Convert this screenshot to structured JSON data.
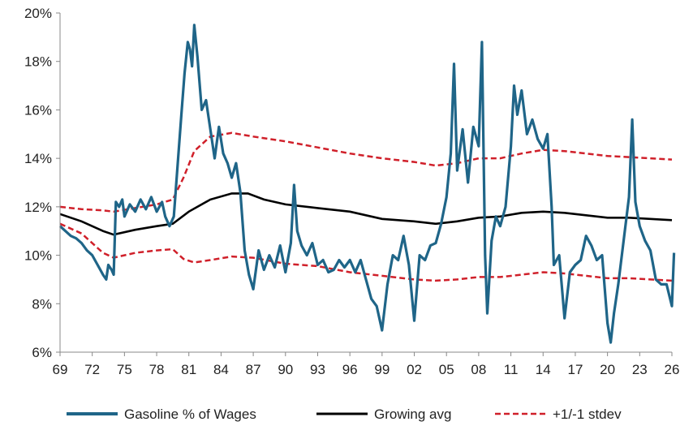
{
  "colors": {
    "gasoline": "#1f6588",
    "avg": "#000000",
    "stdev": "#d0202a",
    "axis": "#888888"
  },
  "chart_data": {
    "type": "line",
    "title": "",
    "xlabel": "",
    "ylabel": "",
    "ylim": [
      6,
      20
    ],
    "xlim": [
      1969,
      2026
    ],
    "grid": false,
    "legend": "bottom",
    "x_tick_labels": [
      "69",
      "72",
      "75",
      "78",
      "81",
      "84",
      "87",
      "90",
      "93",
      "96",
      "99",
      "02",
      "05",
      "08",
      "11",
      "14",
      "17",
      "20",
      "23",
      "26"
    ],
    "x_tick_years": [
      1969,
      1972,
      1975,
      1978,
      1981,
      1984,
      1987,
      1990,
      1993,
      1996,
      1999,
      2002,
      2005,
      2008,
      2011,
      2014,
      2017,
      2020,
      2023,
      2026
    ],
    "y_ticks": [
      6,
      8,
      10,
      12,
      14,
      16,
      18,
      20
    ],
    "y_tick_labels": [
      "6%",
      "8%",
      "10%",
      "12%",
      "14%",
      "16%",
      "18%",
      "20%"
    ],
    "series": [
      {
        "name": "Gasoline % of Wages",
        "style": "solid-thick",
        "points": [
          [
            1969.0,
            11.2
          ],
          [
            1969.5,
            11.0
          ],
          [
            1970.0,
            10.8
          ],
          [
            1970.5,
            10.7
          ],
          [
            1971.0,
            10.5
          ],
          [
            1971.5,
            10.2
          ],
          [
            1972.0,
            10.0
          ],
          [
            1972.5,
            9.6
          ],
          [
            1973.0,
            9.2
          ],
          [
            1973.3,
            9.0
          ],
          [
            1973.5,
            9.6
          ],
          [
            1973.8,
            9.4
          ],
          [
            1974.0,
            9.2
          ],
          [
            1974.2,
            12.2
          ],
          [
            1974.5,
            12.0
          ],
          [
            1974.8,
            12.3
          ],
          [
            1975.0,
            11.6
          ],
          [
            1975.5,
            12.1
          ],
          [
            1976.0,
            11.8
          ],
          [
            1976.5,
            12.3
          ],
          [
            1977.0,
            11.9
          ],
          [
            1977.5,
            12.4
          ],
          [
            1978.0,
            11.8
          ],
          [
            1978.5,
            12.2
          ],
          [
            1978.8,
            11.6
          ],
          [
            1979.2,
            11.2
          ],
          [
            1979.6,
            11.6
          ],
          [
            1980.0,
            14.0
          ],
          [
            1980.3,
            15.8
          ],
          [
            1980.6,
            17.5
          ],
          [
            1980.9,
            18.8
          ],
          [
            1981.1,
            18.5
          ],
          [
            1981.3,
            17.8
          ],
          [
            1981.5,
            19.5
          ],
          [
            1981.8,
            18.2
          ],
          [
            1982.2,
            16.0
          ],
          [
            1982.6,
            16.4
          ],
          [
            1983.0,
            15.2
          ],
          [
            1983.4,
            14.0
          ],
          [
            1983.8,
            15.3
          ],
          [
            1984.2,
            14.2
          ],
          [
            1984.6,
            13.8
          ],
          [
            1985.0,
            13.2
          ],
          [
            1985.4,
            13.8
          ],
          [
            1985.8,
            12.6
          ],
          [
            1986.2,
            10.2
          ],
          [
            1986.6,
            9.2
          ],
          [
            1987.0,
            8.6
          ],
          [
            1987.5,
            10.2
          ],
          [
            1988.0,
            9.4
          ],
          [
            1988.5,
            10.0
          ],
          [
            1989.0,
            9.5
          ],
          [
            1989.5,
            10.4
          ],
          [
            1990.0,
            9.3
          ],
          [
            1990.5,
            10.5
          ],
          [
            1990.8,
            12.9
          ],
          [
            1991.1,
            11.0
          ],
          [
            1991.5,
            10.4
          ],
          [
            1992.0,
            10.0
          ],
          [
            1992.5,
            10.5
          ],
          [
            1993.0,
            9.6
          ],
          [
            1993.5,
            9.8
          ],
          [
            1994.0,
            9.3
          ],
          [
            1994.5,
            9.4
          ],
          [
            1995.0,
            9.8
          ],
          [
            1995.5,
            9.5
          ],
          [
            1996.0,
            9.8
          ],
          [
            1996.5,
            9.3
          ],
          [
            1997.0,
            9.8
          ],
          [
            1997.5,
            9.0
          ],
          [
            1998.0,
            8.2
          ],
          [
            1998.5,
            7.9
          ],
          [
            1999.0,
            6.9
          ],
          [
            1999.5,
            8.8
          ],
          [
            2000.0,
            10.0
          ],
          [
            2000.5,
            9.8
          ],
          [
            2001.0,
            10.8
          ],
          [
            2001.5,
            9.6
          ],
          [
            2002.0,
            7.3
          ],
          [
            2002.5,
            10.0
          ],
          [
            2003.0,
            9.8
          ],
          [
            2003.5,
            10.4
          ],
          [
            2004.0,
            10.5
          ],
          [
            2004.5,
            11.3
          ],
          [
            2005.0,
            12.4
          ],
          [
            2005.4,
            14.2
          ],
          [
            2005.7,
            17.9
          ],
          [
            2006.0,
            13.5
          ],
          [
            2006.5,
            15.2
          ],
          [
            2007.0,
            13.0
          ],
          [
            2007.5,
            15.3
          ],
          [
            2008.0,
            14.5
          ],
          [
            2008.3,
            18.8
          ],
          [
            2008.6,
            10.0
          ],
          [
            2008.8,
            7.6
          ],
          [
            2009.2,
            10.6
          ],
          [
            2009.6,
            11.6
          ],
          [
            2010.0,
            11.2
          ],
          [
            2010.5,
            12.0
          ],
          [
            2011.0,
            14.5
          ],
          [
            2011.3,
            17.0
          ],
          [
            2011.6,
            15.8
          ],
          [
            2012.0,
            16.8
          ],
          [
            2012.5,
            15.0
          ],
          [
            2013.0,
            15.6
          ],
          [
            2013.5,
            14.8
          ],
          [
            2014.0,
            14.4
          ],
          [
            2014.4,
            15.0
          ],
          [
            2014.8,
            12.0
          ],
          [
            2015.0,
            9.6
          ],
          [
            2015.5,
            10.0
          ],
          [
            2016.0,
            7.4
          ],
          [
            2016.5,
            9.3
          ],
          [
            2017.0,
            9.6
          ],
          [
            2017.5,
            9.8
          ],
          [
            2018.0,
            10.8
          ],
          [
            2018.5,
            10.4
          ],
          [
            2019.0,
            9.8
          ],
          [
            2019.5,
            10.0
          ],
          [
            2020.0,
            7.2
          ],
          [
            2020.3,
            6.4
          ],
          [
            2020.6,
            7.6
          ],
          [
            2021.0,
            8.8
          ],
          [
            2021.5,
            10.6
          ],
          [
            2022.0,
            12.4
          ],
          [
            2022.3,
            15.6
          ],
          [
            2022.6,
            12.2
          ],
          [
            2023.0,
            11.2
          ],
          [
            2023.5,
            10.6
          ],
          [
            2024.0,
            10.2
          ],
          [
            2024.5,
            9.0
          ],
          [
            2025.0,
            8.8
          ],
          [
            2025.5,
            8.8
          ],
          [
            2026.0,
            7.9
          ],
          [
            2026.2,
            10.1
          ]
        ]
      },
      {
        "name": "Growing avg",
        "style": "solid",
        "points": [
          [
            1969.0,
            11.7
          ],
          [
            1971.0,
            11.4
          ],
          [
            1973.0,
            11.0
          ],
          [
            1974.0,
            10.85
          ],
          [
            1976.0,
            11.05
          ],
          [
            1978.0,
            11.2
          ],
          [
            1979.5,
            11.3
          ],
          [
            1981.0,
            11.8
          ],
          [
            1983.0,
            12.3
          ],
          [
            1985.0,
            12.55
          ],
          [
            1986.5,
            12.55
          ],
          [
            1988.0,
            12.3
          ],
          [
            1990.0,
            12.1
          ],
          [
            1993.0,
            11.95
          ],
          [
            1996.0,
            11.8
          ],
          [
            1999.0,
            11.5
          ],
          [
            2002.0,
            11.4
          ],
          [
            2004.0,
            11.3
          ],
          [
            2006.0,
            11.4
          ],
          [
            2008.0,
            11.55
          ],
          [
            2010.0,
            11.6
          ],
          [
            2012.0,
            11.75
          ],
          [
            2014.0,
            11.8
          ],
          [
            2016.0,
            11.75
          ],
          [
            2018.0,
            11.65
          ],
          [
            2020.0,
            11.55
          ],
          [
            2022.0,
            11.55
          ],
          [
            2024.0,
            11.5
          ],
          [
            2026.0,
            11.45
          ]
        ]
      },
      {
        "name": "+1/-1 stdev",
        "style": "dashed",
        "segments": [
          [
            [
              1969.0,
              12.0
            ],
            [
              1971.0,
              11.9
            ],
            [
              1973.0,
              11.85
            ],
            [
              1974.0,
              11.8
            ],
            [
              1976.0,
              11.95
            ],
            [
              1978.0,
              12.1
            ],
            [
              1979.5,
              12.3
            ],
            [
              1980.5,
              13.2
            ],
            [
              1981.5,
              14.3
            ],
            [
              1983.0,
              14.9
            ],
            [
              1985.0,
              15.05
            ],
            [
              1987.0,
              14.9
            ],
            [
              1990.0,
              14.7
            ],
            [
              1993.0,
              14.45
            ],
            [
              1996.0,
              14.2
            ],
            [
              1999.0,
              14.0
            ],
            [
              2002.0,
              13.85
            ],
            [
              2004.0,
              13.7
            ],
            [
              2006.0,
              13.8
            ],
            [
              2008.0,
              14.0
            ],
            [
              2010.0,
              14.0
            ],
            [
              2012.0,
              14.2
            ],
            [
              2014.0,
              14.35
            ],
            [
              2016.0,
              14.3
            ],
            [
              2018.0,
              14.2
            ],
            [
              2020.0,
              14.1
            ],
            [
              2022.0,
              14.05
            ],
            [
              2024.0,
              14.0
            ],
            [
              2026.0,
              13.95
            ]
          ],
          [
            [
              1969.0,
              11.3
            ],
            [
              1971.0,
              10.9
            ],
            [
              1973.0,
              10.1
            ],
            [
              1974.0,
              9.9
            ],
            [
              1976.0,
              10.1
            ],
            [
              1978.0,
              10.2
            ],
            [
              1979.5,
              10.25
            ],
            [
              1980.5,
              9.85
            ],
            [
              1981.5,
              9.7
            ],
            [
              1983.0,
              9.8
            ],
            [
              1985.0,
              9.95
            ],
            [
              1987.0,
              9.9
            ],
            [
              1990.0,
              9.65
            ],
            [
              1993.0,
              9.55
            ],
            [
              1996.0,
              9.3
            ],
            [
              1999.0,
              9.15
            ],
            [
              2002.0,
              9.0
            ],
            [
              2004.0,
              8.95
            ],
            [
              2006.0,
              9.0
            ],
            [
              2008.0,
              9.1
            ],
            [
              2010.0,
              9.1
            ],
            [
              2012.0,
              9.2
            ],
            [
              2014.0,
              9.3
            ],
            [
              2016.0,
              9.25
            ],
            [
              2018.0,
              9.15
            ],
            [
              2020.0,
              9.05
            ],
            [
              2022.0,
              9.05
            ],
            [
              2024.0,
              9.0
            ],
            [
              2026.0,
              8.95
            ]
          ]
        ]
      }
    ]
  },
  "legend": [
    {
      "label": "Gasoline % of Wages"
    },
    {
      "label": "Growing avg"
    },
    {
      "label": "+1/-1 stdev"
    }
  ]
}
